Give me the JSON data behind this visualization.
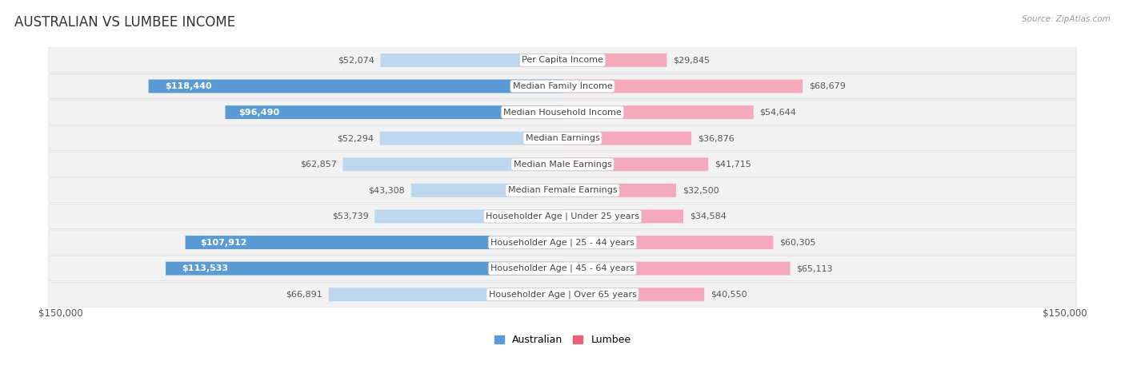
{
  "title": "AUSTRALIAN VS LUMBEE INCOME",
  "source": "Source: ZipAtlas.com",
  "categories": [
    "Per Capita Income",
    "Median Family Income",
    "Median Household Income",
    "Median Earnings",
    "Median Male Earnings",
    "Median Female Earnings",
    "Householder Age | Under 25 years",
    "Householder Age | 25 - 44 years",
    "Householder Age | 45 - 64 years",
    "Householder Age | Over 65 years"
  ],
  "australian_values": [
    52074,
    118440,
    96490,
    52294,
    62857,
    43308,
    53739,
    107912,
    113533,
    66891
  ],
  "lumbee_values": [
    29845,
    68679,
    54644,
    36876,
    41715,
    32500,
    34584,
    60305,
    65113,
    40550
  ],
  "max_value": 150000,
  "australian_color_strong": "#5B9BD5",
  "australian_color_light": "#BDD7EE",
  "lumbee_color_strong": "#E8607A",
  "lumbee_color_light": "#F4AABB",
  "background_color": "#FFFFFF",
  "row_bg": "#F2F2F2",
  "label_font_size": 8.0,
  "title_font_size": 12,
  "legend_font_size": 9,
  "axis_font_size": 8.5,
  "x_axis_label_left": "$150,000",
  "x_axis_label_right": "$150,000",
  "legend_items": [
    "Australian",
    "Lumbee"
  ],
  "aus_threshold": 80000,
  "lum_threshold": 80000
}
